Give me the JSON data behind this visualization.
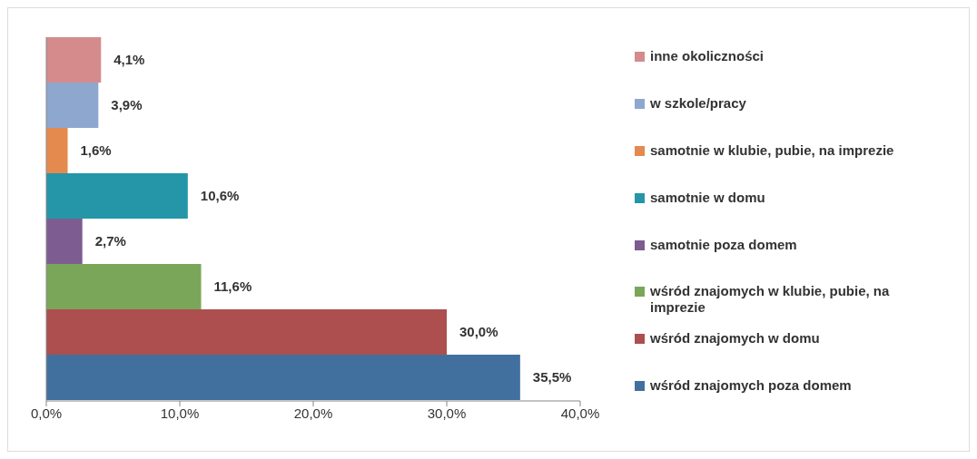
{
  "chart_data": {
    "type": "bar",
    "orientation": "horizontal",
    "categories": [
      null
    ],
    "series": [
      {
        "name": "inne okoliczności",
        "color": "#d58b8c",
        "values": [
          4.1
        ],
        "value_labels": [
          "4,1%"
        ]
      },
      {
        "name": "w szkole/pracy",
        "color": "#8ea7cf",
        "values": [
          3.9
        ],
        "value_labels": [
          "3,9%"
        ]
      },
      {
        "name": "samotnie w klubie, pubie, na imprezie",
        "color": "#e58a4f",
        "values": [
          1.6
        ],
        "value_labels": [
          "1,6%"
        ]
      },
      {
        "name": "samotnie w domu",
        "color": "#2496a8",
        "values": [
          10.6
        ],
        "value_labels": [
          "10,6%"
        ]
      },
      {
        "name": "samotnie poza domem",
        "color": "#7d5c92",
        "values": [
          2.7
        ],
        "value_labels": [
          "2,7%"
        ]
      },
      {
        "name": "wśród znajomych w klubie, pubie, na imprezie",
        "color": "#7aa65a",
        "values": [
          11.6
        ],
        "value_labels": [
          "11,6%"
        ]
      },
      {
        "name": "wśród znajomych w domu",
        "color": "#ad4e4f",
        "values": [
          30.0
        ],
        "value_labels": [
          "30,0%"
        ]
      },
      {
        "name": "wśród znajomych poza domem",
        "color": "#41709f",
        "values": [
          35.5
        ],
        "value_labels": [
          "35,5%"
        ]
      }
    ],
    "xlim": [
      0,
      40
    ],
    "xticks": [
      {
        "value": 0,
        "label": "0,0%"
      },
      {
        "value": 10,
        "label": "10,0%"
      },
      {
        "value": 20,
        "label": "20,0%"
      },
      {
        "value": 30,
        "label": "30,0%"
      },
      {
        "value": 40,
        "label": "40,0%"
      }
    ],
    "legend": "right"
  }
}
